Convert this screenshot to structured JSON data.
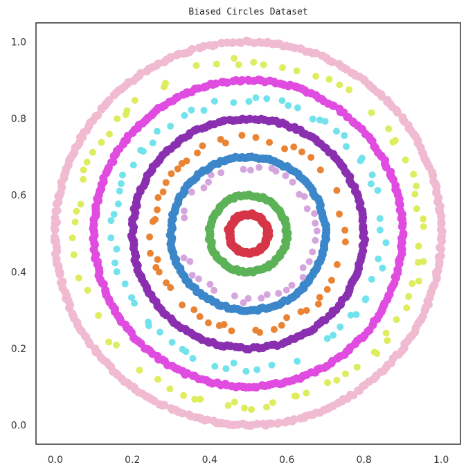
{
  "chart_data": {
    "type": "scatter",
    "title": "Biased Circles Dataset",
    "xlabel": "",
    "ylabel": "",
    "xlim": [
      -0.05,
      1.05
    ],
    "ylim": [
      -0.05,
      1.05
    ],
    "xticks": [
      "0.0",
      "0.2",
      "0.4",
      "0.6",
      "0.8",
      "1.0"
    ],
    "yticks": [
      "0.0",
      "0.2",
      "0.4",
      "0.6",
      "0.8",
      "1.0"
    ],
    "grid": false,
    "legend": "none",
    "center": [
      0.5,
      0.5
    ],
    "series": [
      {
        "color": "#d63548",
        "radius": 0.05,
        "sampling": "dense",
        "points": 60
      },
      {
        "color": "#5cb256",
        "radius": 0.1,
        "sampling": "dense",
        "points": 90
      },
      {
        "color": "#a3d0f0",
        "radius": 0.175,
        "sampling": "sparse",
        "points": 45,
        "color_alt": "#d5a6dd"
      },
      {
        "color": "#3b87c9",
        "radius": 0.2,
        "sampling": "dense",
        "points": 150
      },
      {
        "color": "#ea8435",
        "radius": 0.25,
        "sampling": "sparse",
        "points": 70
      },
      {
        "color": "#8a2fb0",
        "radius": 0.3,
        "sampling": "dense",
        "points": 200
      },
      {
        "color": "#72e3ec",
        "radius": 0.35,
        "sampling": "sparse",
        "points": 80
      },
      {
        "color": "#e04be0",
        "radius": 0.4,
        "sampling": "dense",
        "points": 260
      },
      {
        "color": "#dded5f",
        "radius": 0.45,
        "sampling": "sparse",
        "points": 95
      },
      {
        "color": "#f0bad0",
        "radius": 0.5,
        "sampling": "dense",
        "points": 320
      }
    ]
  }
}
